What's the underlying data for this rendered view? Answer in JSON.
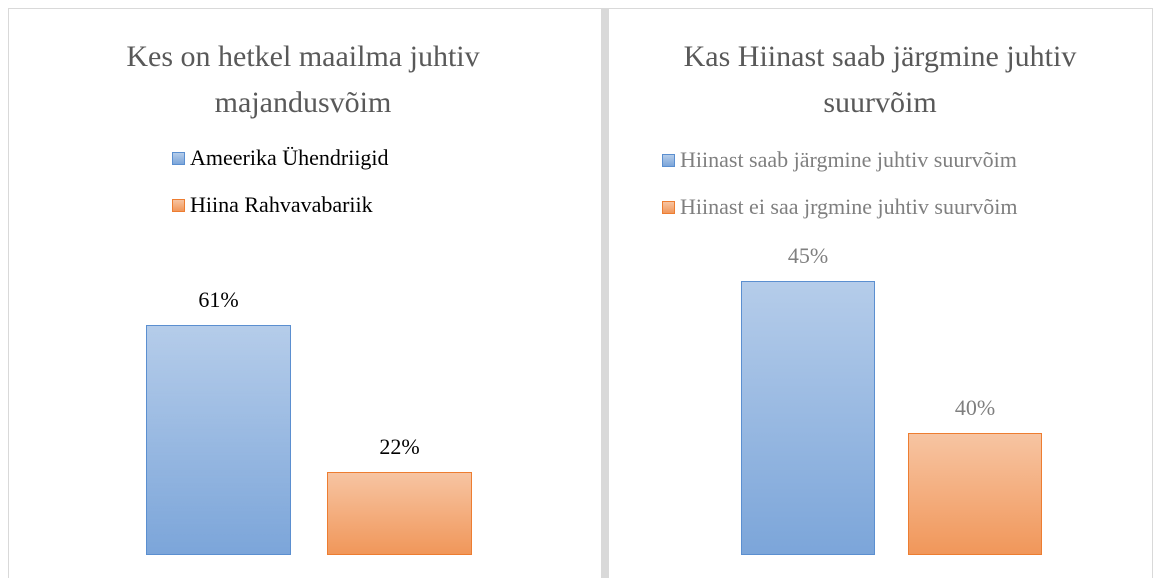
{
  "chart_data": [
    {
      "type": "bar",
      "title": "Kes on hetkel maailma juhtiv majandusvõim",
      "series": [
        {
          "name": "Ameerika Ühendriigid",
          "color": "#5b8fd0",
          "values": [
            61
          ],
          "value_labels": [
            "61%"
          ]
        },
        {
          "name": "Hiina Rahvavabariik",
          "color": "#ed7d31",
          "values": [
            22
          ],
          "value_labels": [
            "22%"
          ]
        }
      ],
      "ylim": [
        0,
        70
      ]
    },
    {
      "type": "bar",
      "title": "Kas Hiinast saab järgmine juhtiv suurvõim",
      "series": [
        {
          "name": "Hiinast saab järgmine juhtiv suurvõim",
          "color": "#5b8fd0",
          "values": [
            45
          ],
          "value_labels": [
            "45%"
          ]
        },
        {
          "name": "Hiinast ei saa jrgmine juhtiv suurvõim",
          "color": "#ed7d31",
          "values": [
            40
          ],
          "value_labels": [
            "40%"
          ]
        }
      ],
      "ylim": [
        36,
        46
      ]
    }
  ]
}
